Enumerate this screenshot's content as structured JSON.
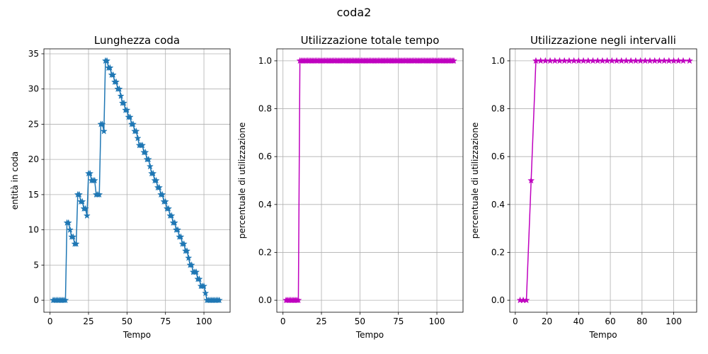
{
  "figure": {
    "suptitle": "coda2"
  },
  "chart_data": [
    {
      "type": "line",
      "title": "Lunghezza coda",
      "xlabel": "Tempo",
      "ylabel": "entità in coda",
      "xlim": [
        -4,
        117
      ],
      "ylim": [
        -1.7,
        35.7
      ],
      "xticks": [
        0,
        25,
        50,
        75,
        100
      ],
      "yticks": [
        0,
        5,
        10,
        15,
        20,
        25,
        30,
        35
      ],
      "grid": true,
      "color": "#1f77b4",
      "marker": "star",
      "series": [
        {
          "x": [
            2,
            3,
            4,
            5,
            6,
            7,
            8,
            9,
            10,
            11,
            12,
            13,
            14,
            15,
            16,
            17,
            18,
            19,
            20,
            21,
            22,
            23,
            24,
            25,
            26,
            27,
            28,
            29,
            30,
            31,
            32,
            33,
            34,
            35,
            36,
            37,
            38,
            39,
            40,
            41,
            42,
            43,
            44,
            45,
            46,
            47,
            48,
            49,
            50,
            51,
            52,
            53,
            54,
            55,
            56,
            57,
            58,
            59,
            60,
            61,
            62,
            63,
            64,
            65,
            66,
            67,
            68,
            69,
            70,
            71,
            72,
            73,
            74,
            75,
            76,
            77,
            78,
            79,
            80,
            81,
            82,
            83,
            84,
            85,
            86,
            87,
            88,
            89,
            90,
            91,
            92,
            93,
            94,
            95,
            96,
            97,
            98,
            99,
            100,
            101,
            102,
            103,
            104,
            105,
            106,
            107,
            108,
            109,
            110
          ],
          "y": [
            0,
            0,
            0,
            0,
            0,
            0,
            0,
            0,
            0,
            11,
            11,
            10,
            9,
            9,
            8,
            8,
            15,
            15,
            14,
            14,
            13,
            13,
            12,
            18,
            18,
            17,
            17,
            17,
            15,
            15,
            15,
            25,
            25,
            24,
            34,
            34,
            33,
            33,
            32,
            32,
            31,
            31,
            30,
            30,
            29,
            28,
            28,
            27,
            27,
            26,
            26,
            25,
            25,
            24,
            24,
            23,
            22,
            22,
            22,
            21,
            21,
            20,
            20,
            19,
            18,
            18,
            17,
            17,
            16,
            16,
            15,
            15,
            14,
            14,
            13,
            13,
            12,
            12,
            11,
            11,
            10,
            10,
            9,
            9,
            8,
            8,
            7,
            7,
            6,
            5,
            5,
            4,
            4,
            4,
            3,
            3,
            2,
            2,
            2,
            1,
            0,
            0,
            0,
            0,
            0,
            0,
            0,
            0,
            0
          ]
        }
      ]
    },
    {
      "type": "line",
      "title": "Utilizzazione totale tempo",
      "xlabel": "Tempo",
      "ylabel": "percentuale di utilizzazione",
      "xlim": [
        -4,
        117
      ],
      "ylim": [
        -0.05,
        1.05
      ],
      "xticks": [
        0,
        25,
        50,
        75,
        100
      ],
      "yticks": [
        0.0,
        0.2,
        0.4,
        0.6,
        0.8,
        1.0
      ],
      "grid": true,
      "color": "#bf00bf",
      "marker": "star",
      "series": [
        {
          "x": [
            2,
            3,
            4,
            5,
            6,
            7,
            8,
            9,
            10,
            11,
            12,
            13,
            14,
            15,
            16,
            17,
            18,
            19,
            20,
            21,
            22,
            23,
            24,
            25,
            26,
            27,
            28,
            29,
            30,
            31,
            32,
            33,
            34,
            35,
            36,
            37,
            38,
            39,
            40,
            41,
            42,
            43,
            44,
            45,
            46,
            47,
            48,
            49,
            50,
            51,
            52,
            53,
            54,
            55,
            56,
            57,
            58,
            59,
            60,
            61,
            62,
            63,
            64,
            65,
            66,
            67,
            68,
            69,
            70,
            71,
            72,
            73,
            74,
            75,
            76,
            77,
            78,
            79,
            80,
            81,
            82,
            83,
            84,
            85,
            86,
            87,
            88,
            89,
            90,
            91,
            92,
            93,
            94,
            95,
            96,
            97,
            98,
            99,
            100,
            101,
            102,
            103,
            104,
            105,
            106,
            107,
            108,
            109,
            110,
            111
          ],
          "y": [
            0,
            0,
            0,
            0,
            0,
            0,
            0,
            0,
            0,
            1,
            1,
            1,
            1,
            1,
            1,
            1,
            1,
            1,
            1,
            1,
            1,
            1,
            1,
            1,
            1,
            1,
            1,
            1,
            1,
            1,
            1,
            1,
            1,
            1,
            1,
            1,
            1,
            1,
            1,
            1,
            1,
            1,
            1,
            1,
            1,
            1,
            1,
            1,
            1,
            1,
            1,
            1,
            1,
            1,
            1,
            1,
            1,
            1,
            1,
            1,
            1,
            1,
            1,
            1,
            1,
            1,
            1,
            1,
            1,
            1,
            1,
            1,
            1,
            1,
            1,
            1,
            1,
            1,
            1,
            1,
            1,
            1,
            1,
            1,
            1,
            1,
            1,
            1,
            1,
            1,
            1,
            1,
            1,
            1,
            1,
            1,
            1,
            1,
            1,
            1,
            1,
            1,
            1,
            1,
            1,
            1,
            1,
            1,
            1,
            1
          ]
        }
      ]
    },
    {
      "type": "line",
      "title": "Utilizzazione negli intervalli",
      "xlabel": "Tempo",
      "ylabel": "percentuale di utilizzazione",
      "xlim": [
        -3.5,
        114.5
      ],
      "ylim": [
        -0.05,
        1.05
      ],
      "xticks": [
        0,
        20,
        40,
        60,
        80,
        100
      ],
      "yticks": [
        0.0,
        0.2,
        0.4,
        0.6,
        0.8,
        1.0
      ],
      "grid": true,
      "color": "#bf00bf",
      "marker": "star",
      "series": [
        {
          "x": [
            3,
            5,
            7,
            10,
            13,
            16,
            19,
            22,
            25,
            28,
            31,
            34,
            37,
            40,
            43,
            46,
            49,
            52,
            55,
            58,
            61,
            64,
            67,
            70,
            73,
            76,
            79,
            82,
            85,
            88,
            91,
            94,
            97,
            100,
            103,
            106,
            110
          ],
          "y": [
            0,
            0,
            0,
            0.5,
            1,
            1,
            1,
            1,
            1,
            1,
            1,
            1,
            1,
            1,
            1,
            1,
            1,
            1,
            1,
            1,
            1,
            1,
            1,
            1,
            1,
            1,
            1,
            1,
            1,
            1,
            1,
            1,
            1,
            1,
            1,
            1,
            1
          ]
        }
      ]
    }
  ]
}
